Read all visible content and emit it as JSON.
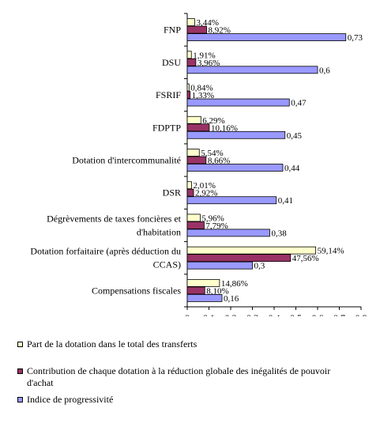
{
  "chart_data": {
    "type": "bar",
    "orientation": "horizontal",
    "categories": [
      "FNP",
      "DSU",
      "FSRIF",
      "FDPTP",
      "Dotation d'intercommunalité",
      "DSR",
      "Dégrèvements de taxes foncières et d'habitation",
      "Dotation forfaitaire (après déduction du CCAS)",
      "Compensations fiscales"
    ],
    "category_lines": [
      [
        "FNP"
      ],
      [
        "DSU"
      ],
      [
        "FSRIF"
      ],
      [
        "FDPTP"
      ],
      [
        "Dotation d'intercommunalité"
      ],
      [
        "DSR"
      ],
      [
        "Dégrèvements de taxes foncières et",
        "d'habitation"
      ],
      [
        "Dotation forfaitaire (après déduction du",
        "CCAS)"
      ],
      [
        "Compensations fiscales"
      ]
    ],
    "series": [
      {
        "name": "Part de la dotation dans le total des transferts",
        "values": [
          0.0344,
          0.0191,
          0.0084,
          0.0629,
          0.0554,
          0.0201,
          0.0596,
          0.5914,
          0.1486
        ],
        "labels": [
          "3,44%",
          "1,91%",
          "0,84%",
          "6,29%",
          "5,54%",
          "2,01%",
          "5,96%",
          "59,14%",
          "14,86%"
        ],
        "color": "#FFFFCC"
      },
      {
        "name": "Contribution de chaque dotation à la réduction globale des inégalités de pouvoir d'achat",
        "values": [
          0.0892,
          0.0396,
          0.0133,
          0.1016,
          0.0866,
          0.0292,
          0.0779,
          0.4756,
          0.081
        ],
        "labels": [
          "8,92%",
          "3,96%",
          "1,33%",
          "10,16%",
          "8,66%",
          "2,92%",
          "7,79%",
          "47,56%",
          "8,10%"
        ],
        "color": "#993366"
      },
      {
        "name": "Indice de progressivité",
        "values": [
          0.73,
          0.6,
          0.47,
          0.45,
          0.44,
          0.41,
          0.38,
          0.3,
          0.16
        ],
        "labels": [
          "0,73",
          "0,6",
          "0,47",
          "0,45",
          "0,44",
          "0,41",
          "0,38",
          "0,3",
          "0,16"
        ],
        "color": "#9999FF"
      }
    ],
    "xlim": [
      0,
      0.8
    ],
    "xticks": [
      "0",
      "0,1",
      "0,2",
      "0,3",
      "0,4",
      "0,5",
      "0,6",
      "0,7",
      "0,8"
    ],
    "grid": false,
    "legend_position": "bottom",
    "legend_lines": [
      [
        "Part de la dotation dans le total des transferts"
      ],
      [
        "Contribution de chaque dotation à la réduction globale des inégalités de pouvoir",
        "d'achat"
      ],
      [
        "Indice de progressivité"
      ]
    ]
  }
}
